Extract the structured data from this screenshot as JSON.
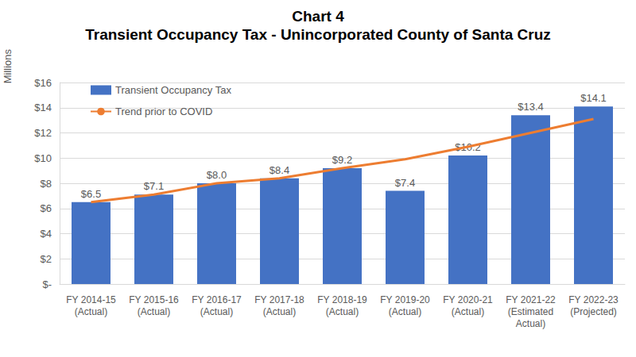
{
  "chart_data": {
    "type": "bar",
    "title": "Chart 4",
    "subtitle": "Transient Occupancy Tax - Unincorporated County of Santa Cruz",
    "y_label": "Millions",
    "categories": [
      "FY 2014-15\n(Actual)",
      "FY 2015-16\n(Actual)",
      "FY 2016-17\n(Actual)",
      "FY 2017-18\n(Actual)",
      "FY 2018-19\n(Actual)",
      "FY 2019-20\n(Actual)",
      "FY 2020-21\n(Actual)",
      "FY 2021-22\n(Estimated\nActual)",
      "FY 2022-23\n(Projected)"
    ],
    "series": [
      {
        "name": "Transient Occupancy Tax",
        "type": "bar",
        "color": "#4472c4",
        "values": [
          6.5,
          7.1,
          8.0,
          8.4,
          9.2,
          7.4,
          10.2,
          13.4,
          14.1
        ],
        "value_labels": [
          "$6.5",
          "$7.1",
          "$8.0",
          "$8.4",
          "$9.2",
          "$7.4",
          "$10.2",
          "$13.4",
          "$14.1"
        ],
        "data_labels": true
      },
      {
        "name": "Trend prior to COVID",
        "type": "line",
        "color": "#ed7d31",
        "values": [
          6.5,
          7.1,
          8.0,
          8.4,
          9.2,
          9.9,
          10.9,
          12.0,
          13.1
        ]
      }
    ],
    "ylim": [
      0,
      16
    ],
    "yticks": [
      {
        "value": 0,
        "label": "$-"
      },
      {
        "value": 2,
        "label": "$2"
      },
      {
        "value": 4,
        "label": "$4"
      },
      {
        "value": 6,
        "label": "$6"
      },
      {
        "value": 8,
        "label": "$8"
      },
      {
        "value": 10,
        "label": "$10"
      },
      {
        "value": 12,
        "label": "$12"
      },
      {
        "value": 14,
        "label": "$14"
      },
      {
        "value": 16,
        "label": "$16"
      }
    ],
    "grid": true,
    "legend": "upper left"
  }
}
